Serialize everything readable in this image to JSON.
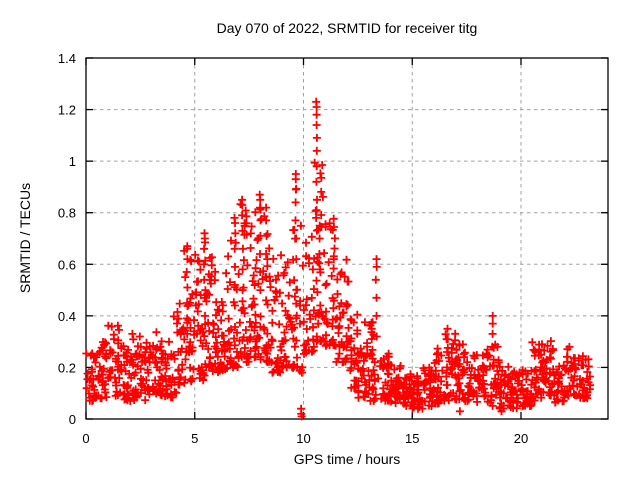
{
  "figure": {
    "title": "Day 070 of 2022, SRMTID for receiver titg"
  },
  "chart_data": {
    "type": "scatter",
    "title": "Day 070 of 2022, SRMTID for receiver titg",
    "xlabel": "GPS time / hours",
    "ylabel": "SRMTID / TECUs",
    "xlim": [
      0,
      24
    ],
    "ylim": [
      0,
      1.4
    ],
    "xticks": [
      0,
      5,
      10,
      15,
      20
    ],
    "xtick_labels": [
      "0",
      "5",
      "10",
      "15",
      "20"
    ],
    "yticks": [
      0,
      0.2,
      0.4,
      0.6,
      0.8,
      1,
      1.2,
      1.4
    ],
    "ytick_labels": [
      "0",
      "0.2",
      "0.4",
      "0.6",
      "0.8",
      "1",
      "1.2",
      "1.4"
    ],
    "grid": true,
    "grid_style": "dashed",
    "legend": false,
    "marker": "plus",
    "marker_size_px": 8,
    "colors": {
      "marker": "#ff0000",
      "grid": "#a0a0a0",
      "axis": "#000000",
      "background": "#ffffff",
      "text": "#000000"
    },
    "peak": {
      "x": 10.6,
      "y": 1.23
    },
    "data_span_hours": [
      0,
      23.2
    ],
    "cluster_format": [
      "t_start_hours",
      "t_end_hours",
      "y_min_TECUs",
      "y_max_TECUs",
      "n_points"
    ],
    "clusters": [
      [
        0.0,
        0.5,
        0.07,
        0.26,
        30
      ],
      [
        0.5,
        1.0,
        0.08,
        0.3,
        30
      ],
      [
        1.0,
        1.5,
        0.08,
        0.37,
        30
      ],
      [
        1.5,
        2.0,
        0.07,
        0.35,
        30
      ],
      [
        2.0,
        2.5,
        0.07,
        0.33,
        30
      ],
      [
        2.5,
        3.0,
        0.07,
        0.3,
        30
      ],
      [
        3.0,
        3.5,
        0.09,
        0.34,
        30
      ],
      [
        3.5,
        4.0,
        0.08,
        0.3,
        28
      ],
      [
        4.0,
        4.5,
        0.1,
        0.45,
        28
      ],
      [
        4.5,
        5.0,
        0.14,
        0.66,
        34
      ],
      [
        5.0,
        5.5,
        0.15,
        0.72,
        36
      ],
      [
        5.5,
        6.0,
        0.18,
        0.64,
        34
      ],
      [
        6.0,
        6.5,
        0.18,
        0.62,
        32
      ],
      [
        6.5,
        7.0,
        0.2,
        0.76,
        32
      ],
      [
        7.0,
        7.5,
        0.22,
        0.84,
        34
      ],
      [
        7.5,
        8.0,
        0.24,
        0.86,
        34
      ],
      [
        8.0,
        8.5,
        0.22,
        0.82,
        34
      ],
      [
        8.5,
        9.0,
        0.18,
        0.64,
        30
      ],
      [
        9.0,
        9.5,
        0.2,
        0.62,
        30
      ],
      [
        9.5,
        10.0,
        0.18,
        0.92,
        32
      ],
      [
        10.0,
        10.5,
        0.25,
        0.78,
        32
      ],
      [
        10.5,
        11.0,
        0.3,
        1.02,
        36
      ],
      [
        11.0,
        11.5,
        0.28,
        0.78,
        34
      ],
      [
        11.5,
        12.0,
        0.22,
        0.66,
        32
      ],
      [
        12.0,
        12.5,
        0.12,
        0.58,
        32
      ],
      [
        12.5,
        13.0,
        0.08,
        0.38,
        30
      ],
      [
        13.0,
        13.5,
        0.07,
        0.45,
        30
      ],
      [
        13.5,
        14.0,
        0.07,
        0.27,
        30
      ],
      [
        14.0,
        14.5,
        0.06,
        0.22,
        30
      ],
      [
        14.5,
        15.0,
        0.05,
        0.18,
        30
      ],
      [
        15.0,
        15.5,
        0.04,
        0.17,
        30
      ],
      [
        15.5,
        16.0,
        0.05,
        0.2,
        30
      ],
      [
        16.0,
        16.5,
        0.06,
        0.28,
        30
      ],
      [
        16.5,
        17.0,
        0.07,
        0.34,
        30
      ],
      [
        17.0,
        17.5,
        0.07,
        0.3,
        30
      ],
      [
        17.5,
        18.0,
        0.06,
        0.25,
        28
      ],
      [
        18.0,
        18.5,
        0.05,
        0.27,
        28
      ],
      [
        18.5,
        19.0,
        0.05,
        0.3,
        28
      ],
      [
        19.0,
        19.5,
        0.04,
        0.21,
        28
      ],
      [
        19.5,
        20.0,
        0.04,
        0.19,
        28
      ],
      [
        20.0,
        20.5,
        0.05,
        0.22,
        28
      ],
      [
        20.5,
        21.0,
        0.07,
        0.3,
        30
      ],
      [
        21.0,
        21.5,
        0.09,
        0.32,
        30
      ],
      [
        21.5,
        22.0,
        0.06,
        0.21,
        28
      ],
      [
        22.0,
        22.5,
        0.09,
        0.28,
        30
      ],
      [
        22.5,
        23.2,
        0.08,
        0.25,
        34
      ]
    ],
    "spike_columns": [
      {
        "x": 4.65,
        "ys": [
          0.33,
          0.39,
          0.45,
          0.51,
          0.57,
          0.62,
          0.66,
          0.67
        ]
      },
      {
        "x": 5.45,
        "ys": [
          0.4,
          0.47,
          0.54,
          0.6,
          0.66,
          0.7,
          0.72
        ]
      },
      {
        "x": 6.85,
        "ys": [
          0.44,
          0.52,
          0.59,
          0.66,
          0.72,
          0.76,
          0.78
        ]
      },
      {
        "x": 7.2,
        "ys": [
          0.5,
          0.58,
          0.66,
          0.73,
          0.79,
          0.83,
          0.85
        ]
      },
      {
        "x": 8.0,
        "ys": [
          0.5,
          0.57,
          0.64,
          0.71,
          0.77,
          0.82,
          0.85,
          0.87
        ]
      },
      {
        "x": 8.3,
        "ys": [
          0.46,
          0.55,
          0.64,
          0.71,
          0.77,
          0.82
        ]
      },
      {
        "x": 9.65,
        "ys": [
          0.62,
          0.7,
          0.77,
          0.84,
          0.89,
          0.93,
          0.95
        ]
      },
      {
        "x": 9.9,
        "ys": [
          0.01,
          0.02,
          0.04
        ]
      },
      {
        "x": 10.6,
        "ys": [
          0.78,
          0.85,
          0.92,
          0.98,
          1.04,
          1.09,
          1.14,
          1.18,
          1.21,
          1.23
        ]
      },
      {
        "x": 10.75,
        "ys": [
          0.58,
          0.64,
          0.7,
          0.75
        ]
      },
      {
        "x": 13.35,
        "ys": [
          0.32,
          0.4,
          0.47,
          0.54,
          0.59,
          0.62
        ]
      },
      {
        "x": 16.6,
        "ys": [
          0.2,
          0.26,
          0.31,
          0.35
        ]
      },
      {
        "x": 17.2,
        "ys": [
          0.03
        ]
      },
      {
        "x": 18.7,
        "ys": [
          0.28,
          0.33,
          0.37,
          0.4
        ]
      },
      {
        "x": 19.1,
        "ys": [
          0.03
        ]
      }
    ]
  }
}
